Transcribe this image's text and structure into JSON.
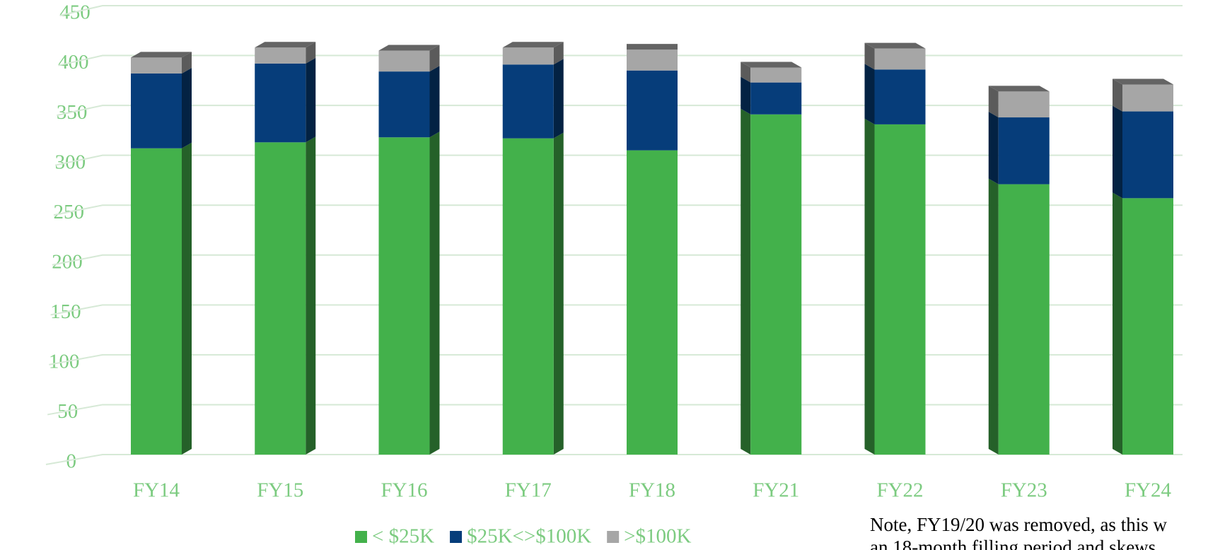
{
  "chart_data": {
    "type": "bar",
    "stacked": true,
    "categories": [
      "FY14",
      "FY15",
      "FY16",
      "FY17",
      "FY18",
      "FY21",
      "FY22",
      "FY23",
      "FY24"
    ],
    "series": [
      {
        "name": "< $25K",
        "color": "#43b14b",
        "values": [
          307,
          313,
          318,
          317,
          305,
          341,
          331,
          271,
          257
        ]
      },
      {
        "name": "$25K<>$100K",
        "color": "#063d7a",
        "values": [
          75,
          79,
          66,
          74,
          80,
          32,
          55,
          67,
          87
        ]
      },
      {
        "name": ">$100K",
        "color": "#a6a6a6",
        "values": [
          16,
          16,
          21,
          17,
          21,
          15,
          21,
          26,
          27
        ]
      }
    ],
    "ylim": [
      0,
      450
    ],
    "yticks": [
      0,
      50,
      100,
      150,
      200,
      250,
      300,
      350,
      400,
      450
    ],
    "grid": true,
    "legend": "bottom",
    "note": [
      "Note, FY19/20 was removed, as this w",
      "an 18-month filling period and skews"
    ]
  }
}
